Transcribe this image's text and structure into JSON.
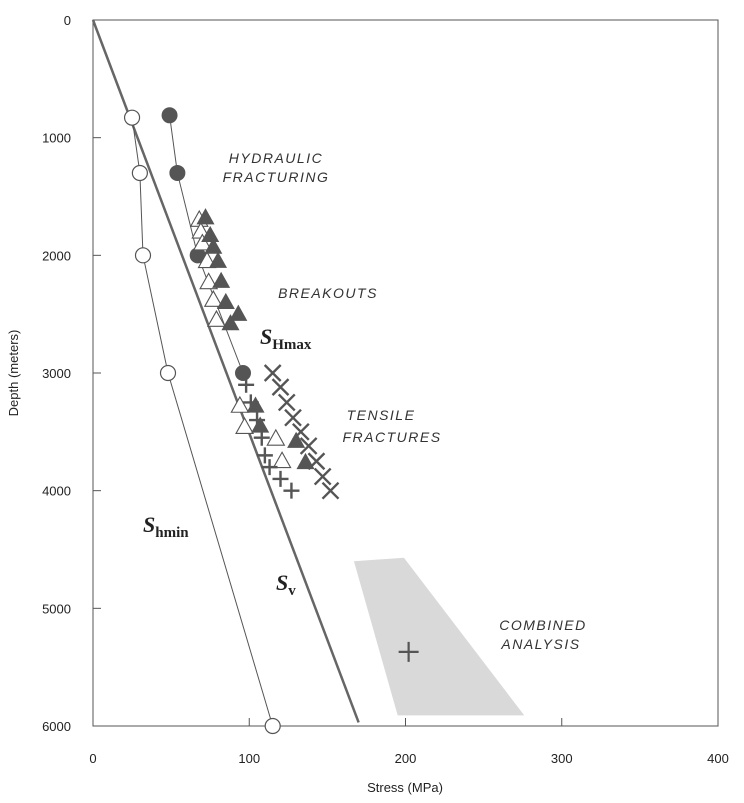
{
  "chart_data": {
    "type": "scatter",
    "title": "",
    "xlabel": "Stress (MPa)",
    "ylabel": "Depth (meters)",
    "xlim": [
      0,
      400
    ],
    "ylim": [
      6000,
      0
    ],
    "xticks": [
      "0",
      "100",
      "200",
      "300",
      "400"
    ],
    "yticks": [
      "0",
      "1000",
      "2000",
      "3000",
      "4000",
      "5000",
      "6000"
    ],
    "colors": {
      "mark": "#555555",
      "heavy": "#666666",
      "region": "#d9d9d9",
      "axis": "#555555"
    },
    "lines": [
      {
        "name": "Sv",
        "points": [
          [
            0,
            0
          ],
          [
            170,
            5970
          ]
        ]
      },
      {
        "name": "Shmin",
        "points": [
          [
            25,
            830
          ],
          [
            30,
            1300
          ],
          [
            32,
            2000
          ],
          [
            48,
            3000
          ],
          [
            115,
            6000
          ]
        ]
      },
      {
        "name": "SHmax",
        "points": [
          [
            49,
            810
          ],
          [
            54,
            1300
          ],
          [
            67,
            2000
          ],
          [
            96,
            3000
          ]
        ]
      }
    ],
    "series": [
      {
        "marker": "open-circle",
        "points": [
          [
            25,
            830
          ],
          [
            30,
            1300
          ],
          [
            32,
            2000
          ],
          [
            48,
            3000
          ],
          [
            115,
            6000
          ]
        ]
      },
      {
        "marker": "filled-circle",
        "points": [
          [
            49,
            810
          ],
          [
            54,
            1300
          ],
          [
            67,
            2000
          ],
          [
            96,
            3000
          ]
        ]
      },
      {
        "marker": "open-triangle",
        "points": [
          [
            68,
            1700
          ],
          [
            69,
            1800
          ],
          [
            70,
            1900
          ],
          [
            73,
            2050
          ],
          [
            74,
            2230
          ],
          [
            77,
            2380
          ],
          [
            79,
            2550
          ],
          [
            94,
            3280
          ],
          [
            97,
            3460
          ],
          [
            117,
            3560
          ],
          [
            121,
            3750
          ]
        ]
      },
      {
        "marker": "filled-triangle",
        "points": [
          [
            72,
            1680
          ],
          [
            75,
            1830
          ],
          [
            77,
            1930
          ],
          [
            80,
            2050
          ],
          [
            82,
            2220
          ],
          [
            85,
            2400
          ],
          [
            88,
            2580
          ],
          [
            93,
            2500
          ],
          [
            104,
            3280
          ],
          [
            107,
            3450
          ],
          [
            130,
            3580
          ],
          [
            136,
            3760
          ]
        ]
      },
      {
        "marker": "plus",
        "points": [
          [
            98,
            3100
          ],
          [
            101,
            3250
          ],
          [
            105,
            3400
          ],
          [
            108,
            3550
          ],
          [
            110,
            3700
          ],
          [
            113,
            3800
          ],
          [
            120,
            3900
          ],
          [
            127,
            4000
          ]
        ]
      },
      {
        "marker": "cross",
        "points": [
          [
            115,
            3000
          ],
          [
            120,
            3120
          ],
          [
            124,
            3250
          ],
          [
            128,
            3380
          ],
          [
            133,
            3500
          ],
          [
            138,
            3620
          ],
          [
            143,
            3750
          ],
          [
            147,
            3880
          ],
          [
            152,
            4000
          ]
        ]
      }
    ],
    "region": {
      "name": "Combined analysis range",
      "points": [
        [
          167,
          4600
        ],
        [
          199,
          4570
        ],
        [
          276,
          5910
        ],
        [
          195,
          5910
        ]
      ]
    },
    "combined_point": [
      202,
      5370
    ],
    "labels": {
      "hydraulic": [
        "HYDRAULIC",
        "FRACTURING"
      ],
      "breakouts": [
        "BREAKOUTS"
      ],
      "tensile": [
        "TENSILE",
        "FRACTURES"
      ],
      "combined": [
        "COMBINED",
        "ANALYSIS"
      ]
    },
    "stress_labels": {
      "shmax": {
        "main": "S",
        "sub": "Hmax"
      },
      "shmin": {
        "main": "S",
        "sub": "hmin"
      },
      "sv": {
        "main": "S",
        "sub": "v"
      }
    }
  }
}
